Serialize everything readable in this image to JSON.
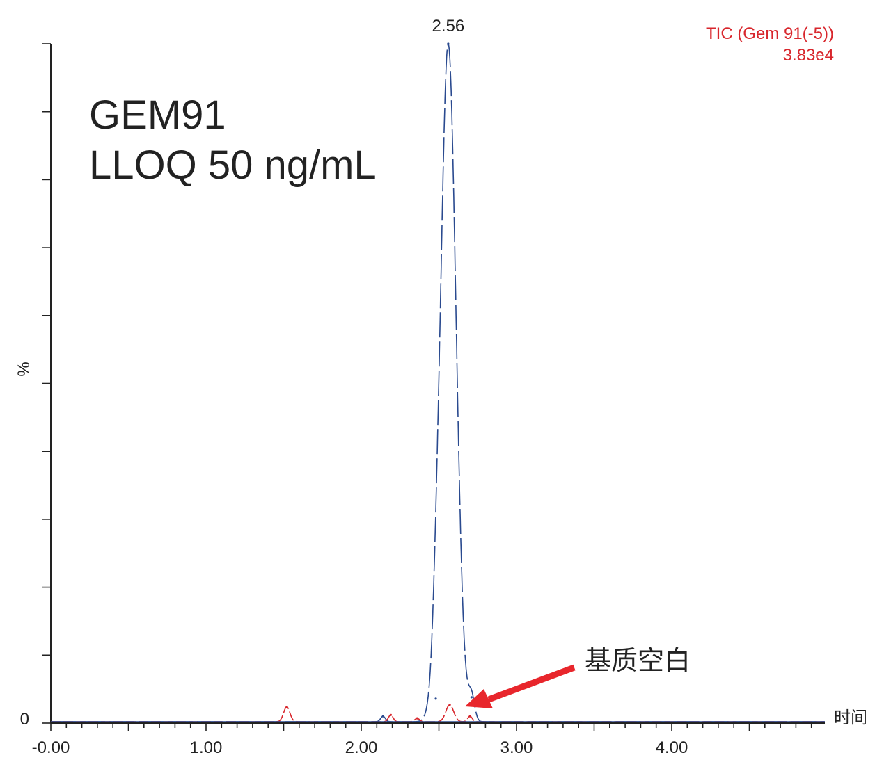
{
  "chart_data": {
    "type": "line",
    "y_axis": {
      "label": "%",
      "zero_label": "0",
      "range": [
        0,
        100
      ]
    },
    "x_axis": {
      "label": "时间",
      "range": [
        0,
        5
      ],
      "tick_labels": [
        {
          "value": 0,
          "text": "-0.00"
        },
        {
          "value": 1,
          "text": "1.00"
        },
        {
          "value": 2,
          "text": "2.00"
        },
        {
          "value": 3,
          "text": "3.00"
        },
        {
          "value": 4,
          "text": "4.00"
        }
      ]
    },
    "legend": {
      "trace": "TIC (Gem 91(-5))",
      "intensity": "3.83e4",
      "placement": "top-right",
      "color": "#d8262c"
    },
    "annotations": {
      "title_line1": "GEM91",
      "title_line2": "LLOQ 50 ng/mL",
      "peak_label": "2.56",
      "arrow_label": "基质空白",
      "arrow_color": "#e8262c"
    },
    "series": [
      {
        "color": "#2a4a8f",
        "peaks": [
          {
            "rt": 2.56,
            "height": 100,
            "width": 0.05
          },
          {
            "rt": 2.48,
            "height": 3.4,
            "width": 0.02
          },
          {
            "rt": 2.71,
            "height": 3.6,
            "width": 0.02
          },
          {
            "rt": 2.14,
            "height": 0.8,
            "width": 0.015
          }
        ]
      },
      {
        "color": "#d8262c",
        "peaks": [
          {
            "rt": 1.52,
            "height": 2.2,
            "width": 0.02
          },
          {
            "rt": 2.19,
            "height": 1.0,
            "width": 0.015
          },
          {
            "rt": 2.57,
            "height": 2.5,
            "width": 0.025
          },
          {
            "rt": 2.36,
            "height": 0.5,
            "width": 0.015
          },
          {
            "rt": 2.7,
            "height": 0.8,
            "width": 0.015
          }
        ]
      }
    ]
  }
}
